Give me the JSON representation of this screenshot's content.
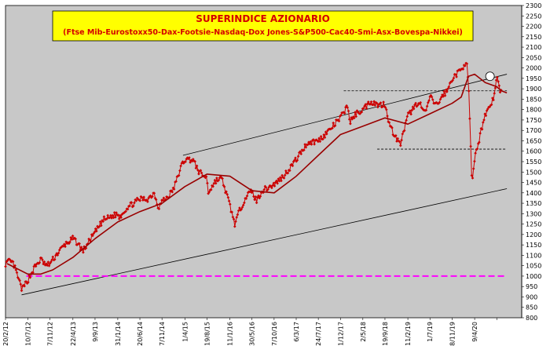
{
  "colors": {
    "plot_background": "#c8c8c8",
    "frame_background": "#ffffff",
    "title_box": "#ffff00",
    "title_text": "#d40000",
    "series_price": "#cc0000",
    "series_average": "#990000",
    "trendline": "#000000",
    "reference_level": "#ff00ff",
    "circle_marker": "#ffffff"
  },
  "chart_data": {
    "type": "line",
    "title": "SUPERINDICE AZIONARIO",
    "subtitle": "(Ftse Mib-Eurostoxx50-Dax-Footsie-Nasdaq-Dox Jones-S&P500-Cac40-Smi-Asx-Bovespa-Nikkei)",
    "xlabel": "",
    "ylabel": "",
    "x_range": [
      "2012-02-20",
      "2021-02-01"
    ],
    "ylim": [
      800,
      2300
    ],
    "y_ticks": [
      800,
      850,
      900,
      950,
      1000,
      1050,
      1100,
      1150,
      1200,
      1250,
      1300,
      1350,
      1400,
      1450,
      1500,
      1550,
      1600,
      1650,
      1700,
      1750,
      1800,
      1850,
      1900,
      1950,
      2000,
      2050,
      2100,
      2150,
      2200,
      2250,
      2300
    ],
    "x_ticks": [
      {
        "label": "20/2/12",
        "date": "2012-02-20"
      },
      {
        "label": "10/7/12",
        "date": "2012-07-10"
      },
      {
        "label": "27/11/12",
        "date": "2012-11-27"
      },
      {
        "label": "22/4/13",
        "date": "2013-04-22"
      },
      {
        "label": "9/9/13",
        "date": "2013-09-09"
      },
      {
        "label": "31/1/14",
        "date": "2014-01-31"
      },
      {
        "label": "20/6/14",
        "date": "2014-06-20"
      },
      {
        "label": "7/11/14",
        "date": "2014-11-07"
      },
      {
        "label": "1/4/15",
        "date": "2015-04-01"
      },
      {
        "label": "19/8/15",
        "date": "2015-08-19"
      },
      {
        "label": "11/1/16",
        "date": "2016-01-11"
      },
      {
        "label": "30/5/16",
        "date": "2016-05-30"
      },
      {
        "label": "17/10/16",
        "date": "2016-10-17"
      },
      {
        "label": "6/3/17",
        "date": "2017-03-06"
      },
      {
        "label": "24/7/17",
        "date": "2017-07-24"
      },
      {
        "label": "11/12/17",
        "date": "2017-12-11"
      },
      {
        "label": "2/5/18",
        "date": "2018-05-02"
      },
      {
        "label": "19/9/18",
        "date": "2018-09-19"
      },
      {
        "label": "11/2/19",
        "date": "2019-02-11"
      },
      {
        "label": "1/7/19",
        "date": "2019-07-01"
      },
      {
        "label": "18/11/19",
        "date": "2019-11-18"
      },
      {
        "label": "9/4/20",
        "date": "2020-04-09"
      },
      {
        "label": "",
        "date": "2020-08-27"
      }
    ],
    "grid": false,
    "legend": "none",
    "series": [
      {
        "role": "price",
        "x": [
          "2012-02-20",
          "2012-03-15",
          "2012-04-10",
          "2012-05-10",
          "2012-06-04",
          "2012-07-10",
          "2012-08-20",
          "2012-10-01",
          "2012-11-05",
          "2012-11-27",
          "2013-01-15",
          "2013-03-01",
          "2013-04-22",
          "2013-05-20",
          "2013-06-24",
          "2013-09-09",
          "2013-11-01",
          "2014-01-31",
          "2014-02-05",
          "2014-04-01",
          "2014-06-20",
          "2014-08-07",
          "2014-09-20",
          "2014-10-15",
          "2014-11-07",
          "2014-12-15",
          "2015-01-20",
          "2015-03-10",
          "2015-04-01",
          "2015-05-20",
          "2015-06-30",
          "2015-08-19",
          "2015-08-25",
          "2015-10-15",
          "2015-11-20",
          "2016-01-11",
          "2016-02-11",
          "2016-03-15",
          "2016-04-20",
          "2016-05-30",
          "2016-06-27",
          "2016-08-01",
          "2016-10-17",
          "2016-12-15",
          "2017-03-06",
          "2017-05-15",
          "2017-07-24",
          "2017-10-01",
          "2017-12-11",
          "2018-01-26",
          "2018-02-09",
          "2018-03-20",
          "2018-05-02",
          "2018-06-20",
          "2018-08-15",
          "2018-09-19",
          "2018-10-20",
          "2018-12-24",
          "2019-02-11",
          "2019-04-20",
          "2019-05-31",
          "2019-07-01",
          "2019-08-15",
          "2019-09-20",
          "2019-10-20",
          "2019-11-18",
          "2020-01-15",
          "2020-02-19",
          "2020-03-05",
          "2020-03-23",
          "2020-04-09",
          "2020-05-15",
          "2020-06-10",
          "2020-07-15",
          "2020-08-10",
          "2020-08-27",
          "2020-09-10",
          "2020-09-25"
        ],
        "y": [
          1060,
          1070,
          1060,
          990,
          935,
          980,
          1040,
          1080,
          1050,
          1060,
          1110,
          1150,
          1180,
          1160,
          1120,
          1210,
          1270,
          1300,
          1280,
          1330,
          1370,
          1370,
          1400,
          1330,
          1360,
          1380,
          1420,
          1530,
          1560,
          1560,
          1500,
          1470,
          1400,
          1460,
          1470,
          1340,
          1250,
          1320,
          1380,
          1410,
          1360,
          1410,
          1440,
          1480,
          1560,
          1640,
          1650,
          1700,
          1760,
          1820,
          1740,
          1780,
          1800,
          1840,
          1820,
          1830,
          1720,
          1630,
          1770,
          1840,
          1780,
          1860,
          1820,
          1870,
          1890,
          1950,
          1990,
          2040,
          1850,
          1430,
          1560,
          1680,
          1770,
          1820,
          1860,
          1960,
          1910,
          1880
        ]
      },
      {
        "role": "moving-average",
        "x": [
          "2012-03-01",
          "2012-07-10",
          "2012-10-01",
          "2012-12-15",
          "2013-04-22",
          "2013-09-09",
          "2014-01-31",
          "2014-06-20",
          "2014-11-07",
          "2015-04-01",
          "2015-08-19",
          "2016-01-11",
          "2016-05-30",
          "2016-10-17",
          "2017-03-06",
          "2017-07-24",
          "2017-12-11",
          "2018-05-02",
          "2018-09-19",
          "2019-02-11",
          "2019-07-01",
          "2019-11-18",
          "2020-01-15",
          "2020-03-01",
          "2020-04-09",
          "2020-06-15",
          "2020-08-27",
          "2020-09-25",
          "2020-10-30"
        ],
        "y": [
          1060,
          1010,
          1010,
          1030,
          1090,
          1180,
          1260,
          1310,
          1350,
          1430,
          1490,
          1480,
          1410,
          1400,
          1480,
          1580,
          1680,
          1720,
          1760,
          1730,
          1780,
          1830,
          1860,
          1960,
          1970,
          1930,
          1910,
          1890,
          1880
        ]
      }
    ],
    "lines": [
      {
        "role": "upper-trendline",
        "from": {
          "x": "2015-03-20",
          "y": 1580
        },
        "to": {
          "x": "2020-10-30",
          "y": 1970
        }
      },
      {
        "role": "lower-trendline",
        "from": {
          "x": "2012-06-01",
          "y": 910
        },
        "to": {
          "x": "2020-10-30",
          "y": 1420
        }
      },
      {
        "role": "resistance",
        "from": {
          "x": "2018-01-01",
          "y": 1890
        },
        "to": {
          "x": "2020-10-30",
          "y": 1890
        }
      },
      {
        "role": "support",
        "from": {
          "x": "2018-08-01",
          "y": 1610
        },
        "to": {
          "x": "2020-10-30",
          "y": 1610
        }
      },
      {
        "role": "reference-level",
        "from": {
          "x": "2012-07-01",
          "y": 1000
        },
        "to": {
          "x": "2020-10-30",
          "y": 1000
        }
      }
    ],
    "marker": {
      "role": "circle",
      "x": "2020-07-15",
      "y": 1960
    }
  }
}
